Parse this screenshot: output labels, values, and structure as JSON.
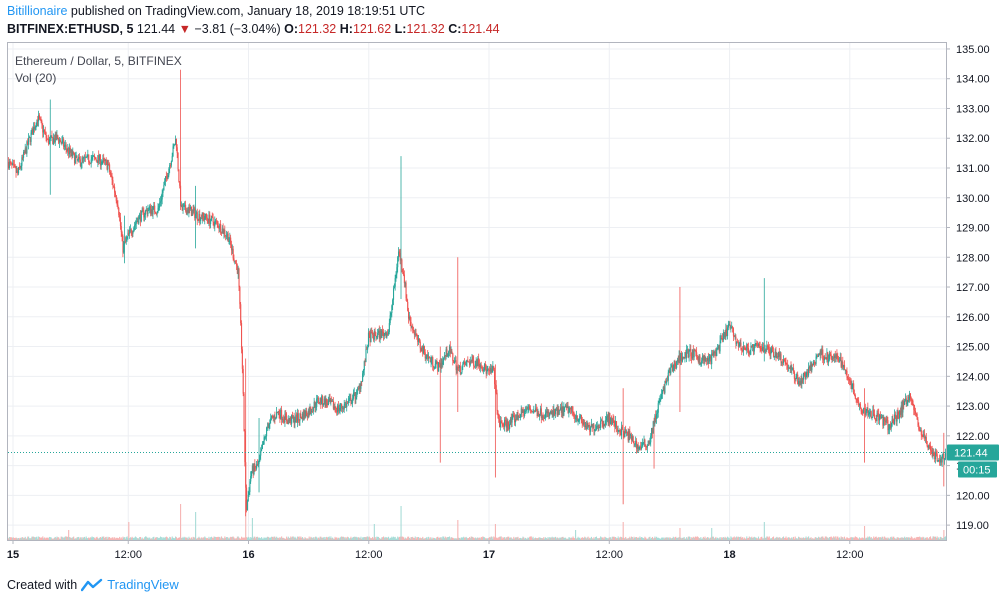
{
  "header": {
    "author": "Bitillionaire",
    "published_text": " published on TradingView.com, January 18, 2019 18:19:51 UTC",
    "symbol": "BITFINEX:ETHUSD, 5",
    "last": "121.44",
    "change": "−3.81 (−3.04%)",
    "open_label": "O:",
    "open": "121.32",
    "high_label": "H:",
    "high": "121.62",
    "low_label": "L:",
    "low": "121.32",
    "close_label": "C:",
    "close": "121.44"
  },
  "pane": {
    "title": "Ethereum / Dollar, 5, BITFINEX",
    "volume_label": "Vol (20)"
  },
  "footer": {
    "created_with": "Created with",
    "brand": "TradingView"
  },
  "colors": {
    "up": "#26a69a",
    "down": "#ef5350",
    "vol_up": "#a8dcd7",
    "vol_down": "#f6b5b4",
    "grid": "#edeff3",
    "price_line": "#26a69a",
    "brand": "#2196f3"
  },
  "chart_data": {
    "type": "candlestick",
    "ylim": [
      118.5,
      135.2
    ],
    "y_ticks": [
      "135.00",
      "134.00",
      "133.00",
      "132.00",
      "131.00",
      "130.00",
      "129.00",
      "128.00",
      "127.00",
      "126.00",
      "125.00",
      "124.00",
      "123.00",
      "122.00",
      "121.00",
      "120.00",
      "119.00"
    ],
    "x_ticks": [
      "15",
      "12:00",
      "16",
      "12:00",
      "17",
      "12:00",
      "18",
      "12:00"
    ],
    "x_tick_values": [
      0.5,
      12,
      24,
      36,
      48,
      60,
      72,
      84
    ],
    "xlim": [
      0,
      93.6
    ],
    "last_price": 121.44,
    "last_price_label": "121.44",
    "countdown": "00:15",
    "trend_path": [
      [
        0,
        131.2
      ],
      [
        1,
        130.8
      ],
      [
        2,
        131.8
      ],
      [
        3,
        132.7
      ],
      [
        4,
        131.9
      ],
      [
        5,
        132.0
      ],
      [
        6,
        131.6
      ],
      [
        7,
        131.2
      ],
      [
        8,
        131.3
      ],
      [
        9,
        131.3
      ],
      [
        10,
        131.1
      ],
      [
        11,
        129.8
      ],
      [
        11.5,
        128.3
      ],
      [
        12,
        128.7
      ],
      [
        13,
        129.3
      ],
      [
        14,
        129.6
      ],
      [
        15,
        129.6
      ],
      [
        16,
        130.9
      ],
      [
        16.8,
        132.0
      ],
      [
        17.3,
        129.6
      ],
      [
        18,
        129.6
      ],
      [
        19,
        129.4
      ],
      [
        20,
        129.3
      ],
      [
        21,
        129.1
      ],
      [
        22,
        128.7
      ],
      [
        23,
        127.5
      ],
      [
        23.4,
        124.5
      ],
      [
        23.8,
        119.5
      ],
      [
        24.3,
        120.8
      ],
      [
        25,
        121.0
      ],
      [
        26,
        122.4
      ],
      [
        27,
        122.8
      ],
      [
        28,
        122.5
      ],
      [
        29,
        122.6
      ],
      [
        30,
        122.8
      ],
      [
        31,
        123.2
      ],
      [
        32,
        123.1
      ],
      [
        33,
        122.9
      ],
      [
        34,
        123.1
      ],
      [
        35,
        123.5
      ],
      [
        35.5,
        124.2
      ],
      [
        36,
        125.3
      ],
      [
        37,
        125.4
      ],
      [
        38,
        125.5
      ],
      [
        38.5,
        126.8
      ],
      [
        39,
        128.2
      ],
      [
        39.5,
        127.5
      ],
      [
        40,
        126.0
      ],
      [
        41,
        125.1
      ],
      [
        42,
        124.6
      ],
      [
        43,
        124.3
      ],
      [
        44,
        124.9
      ],
      [
        45,
        124.2
      ],
      [
        46,
        124.5
      ],
      [
        47,
        124.5
      ],
      [
        48,
        124.1
      ],
      [
        48.5,
        124.2
      ],
      [
        49,
        122.4
      ],
      [
        50,
        122.4
      ],
      [
        51,
        122.7
      ],
      [
        52,
        122.9
      ],
      [
        53,
        122.8
      ],
      [
        54,
        122.7
      ],
      [
        55,
        122.8
      ],
      [
        56,
        122.9
      ],
      [
        57,
        122.6
      ],
      [
        58,
        122.2
      ],
      [
        59,
        122.4
      ],
      [
        60,
        122.6
      ],
      [
        61,
        122.2
      ],
      [
        62,
        122.0
      ],
      [
        63,
        121.6
      ],
      [
        64,
        121.8
      ],
      [
        65,
        123.1
      ],
      [
        66,
        124.1
      ],
      [
        67,
        124.6
      ],
      [
        68,
        124.8
      ],
      [
        69,
        124.6
      ],
      [
        70,
        124.5
      ],
      [
        71,
        125.0
      ],
      [
        72,
        125.7
      ],
      [
        73,
        125.0
      ],
      [
        74,
        124.9
      ],
      [
        75,
        125.0
      ],
      [
        76,
        124.9
      ],
      [
        77,
        124.7
      ],
      [
        78,
        124.3
      ],
      [
        79,
        123.8
      ],
      [
        80,
        124.2
      ],
      [
        81,
        124.8
      ],
      [
        82,
        124.6
      ],
      [
        83,
        124.6
      ],
      [
        84,
        123.9
      ],
      [
        85,
        123.0
      ],
      [
        86,
        122.8
      ],
      [
        87,
        122.6
      ],
      [
        88,
        122.3
      ],
      [
        89,
        122.8
      ],
      [
        90,
        123.4
      ],
      [
        91,
        122.2
      ],
      [
        92,
        121.6
      ],
      [
        93,
        121.1
      ],
      [
        93.6,
        121.44
      ]
    ],
    "spikes": [
      {
        "x": 4.2,
        "high": 133.3,
        "low": 130.1
      },
      {
        "x": 11.6,
        "high": 129.4,
        "low": 127.8
      },
      {
        "x": 17.2,
        "high": 134.3,
        "low": 129.6
      },
      {
        "x": 18.7,
        "high": 130.4,
        "low": 128.3
      },
      {
        "x": 23.7,
        "high": 124.6,
        "low": 119.3
      },
      {
        "x": 25.0,
        "high": 122.6,
        "low": 120.1
      },
      {
        "x": 39.2,
        "high": 131.4,
        "low": 126.6
      },
      {
        "x": 43.1,
        "high": 125.0,
        "low": 121.1
      },
      {
        "x": 44.8,
        "high": 128.0,
        "low": 122.8
      },
      {
        "x": 48.6,
        "high": 124.4,
        "low": 120.6
      },
      {
        "x": 61.3,
        "high": 123.6,
        "low": 119.7
      },
      {
        "x": 64.4,
        "high": 122.6,
        "low": 120.9
      },
      {
        "x": 67.0,
        "high": 127.0,
        "low": 122.8
      },
      {
        "x": 75.4,
        "high": 127.3,
        "low": 124.5
      },
      {
        "x": 85.4,
        "high": 123.6,
        "low": 121.1
      },
      {
        "x": 93.3,
        "high": 122.1,
        "low": 120.3
      }
    ],
    "volume_spikes": [
      {
        "x": 6.0,
        "v": 0.25
      },
      {
        "x": 12.0,
        "v": 0.45
      },
      {
        "x": 17.2,
        "v": 0.9
      },
      {
        "x": 18.7,
        "v": 0.7
      },
      {
        "x": 23.7,
        "v": 1.0
      },
      {
        "x": 24.3,
        "v": 0.55
      },
      {
        "x": 36.5,
        "v": 0.4
      },
      {
        "x": 39.2,
        "v": 0.85
      },
      {
        "x": 44.8,
        "v": 0.5
      },
      {
        "x": 48.6,
        "v": 0.4
      },
      {
        "x": 56.6,
        "v": 0.25
      },
      {
        "x": 61.3,
        "v": 0.45
      },
      {
        "x": 67.0,
        "v": 0.3
      },
      {
        "x": 70.2,
        "v": 0.3
      },
      {
        "x": 75.4,
        "v": 0.45
      },
      {
        "x": 85.4,
        "v": 0.35
      },
      {
        "x": 93.3,
        "v": 0.25
      }
    ]
  }
}
